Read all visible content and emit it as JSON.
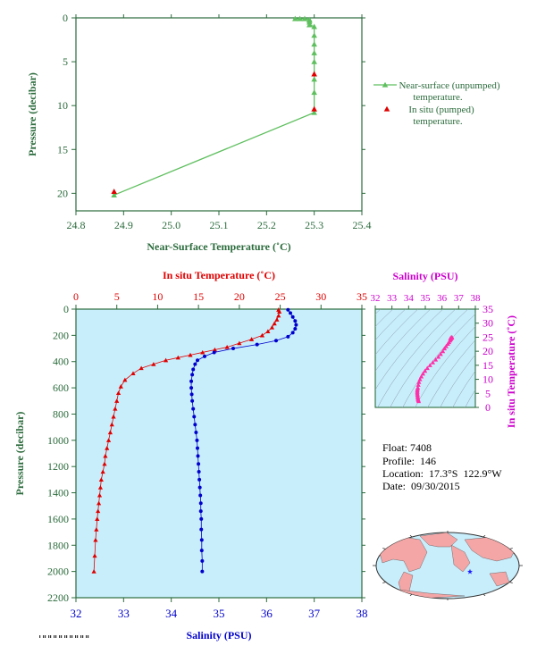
{
  "colors": {
    "axis": "#2b6b3c",
    "green_line": "#5fbf5f",
    "in_situ": "#e00000",
    "salinity": "#0000cc",
    "ts_points": "#ff2fa8",
    "salinity_label": "#cc00cc",
    "plot_bg": "#c8eefc",
    "land": "#f4a6a6",
    "ocean": "#c8eefc",
    "float_marker": "#1a1aff"
  },
  "float_info": {
    "float_label": "Float:",
    "float": "7408",
    "profile_label": "Profile:",
    "profile": "146",
    "location_label": "Location:",
    "location": "17.3°S  122.9°W",
    "date_label": "Date:",
    "date": "09/30/2015"
  },
  "chart_data": [
    {
      "type": "line",
      "id": "near_surface",
      "xlabel": "Near-Surface Temperature (˚C)",
      "ylabel": "Pressure (decibar)",
      "xlim": [
        24.8,
        25.4
      ],
      "ylim": [
        22,
        0
      ],
      "xticks": [
        24.8,
        24.9,
        25.0,
        25.1,
        25.2,
        25.3,
        25.4
      ],
      "yticks": [
        0,
        5,
        10,
        15,
        20
      ],
      "legend_position": "right",
      "series": [
        {
          "name": "Near-surface (unpumped) temperature.",
          "marker": "triangle",
          "x": [
            24.88,
            25.3,
            25.3,
            25.3,
            25.3,
            25.3,
            25.3,
            25.3,
            25.3,
            25.29,
            25.29,
            25.29,
            25.29,
            25.28,
            25.27,
            25.26
          ],
          "y": [
            20.2,
            10.8,
            8.5,
            7.0,
            5.0,
            4.0,
            3.0,
            2.0,
            1.0,
            0.8,
            0.5,
            0.3,
            0.2,
            0.1,
            0.1,
            0.1
          ]
        },
        {
          "name": "In situ (pumped) temperature.",
          "marker": "triangle",
          "x": [
            24.88,
            25.3,
            25.3
          ],
          "y": [
            19.8,
            10.4,
            6.4
          ]
        }
      ]
    },
    {
      "type": "line",
      "id": "profile",
      "xlabel": "Salinity (PSU)",
      "xlabel_top": "In situ Temperature (˚C)",
      "ylabel": "Pressure (decibar)",
      "xlim": [
        32,
        38
      ],
      "xlim_top": [
        0,
        35
      ],
      "ylim": [
        2200,
        0
      ],
      "xticks": [
        32,
        33,
        34,
        35,
        36,
        37,
        38
      ],
      "xticks_top": [
        0,
        5,
        10,
        15,
        20,
        25,
        30,
        35
      ],
      "yticks": [
        0,
        200,
        400,
        600,
        800,
        1000,
        1200,
        1400,
        1600,
        1800,
        2000,
        2200
      ],
      "series": [
        {
          "name": "In situ Temperature",
          "marker": "triangle",
          "x": [
            24.8,
            24.9,
            24.8,
            24.6,
            24.3,
            24.0,
            23.5,
            22.8,
            21.5,
            20.0,
            18.5,
            17.0,
            15.5,
            14.0,
            12.5,
            11.0,
            9.5,
            8.0,
            7.0,
            6.0,
            5.5,
            5.2,
            5.0,
            4.8,
            4.6,
            4.4,
            4.2,
            4.0,
            3.8,
            3.6,
            3.5,
            3.3,
            3.1,
            3.0,
            2.9,
            2.8,
            2.7,
            2.6,
            2.5,
            2.4,
            2.3,
            2.2
          ],
          "y": [
            5,
            20,
            50,
            80,
            110,
            140,
            170,
            200,
            230,
            260,
            290,
            310,
            330,
            350,
            370,
            390,
            420,
            450,
            490,
            540,
            590,
            640,
            700,
            760,
            820,
            880,
            940,
            1000,
            1060,
            1120,
            1180,
            1240,
            1300,
            1360,
            1420,
            1480,
            1540,
            1600,
            1680,
            1760,
            1880,
            2000
          ]
        },
        {
          "name": "Salinity",
          "marker": "circle",
          "x": [
            36.45,
            36.5,
            36.55,
            36.6,
            36.62,
            36.6,
            36.55,
            36.45,
            36.2,
            35.8,
            35.3,
            34.9,
            34.7,
            34.55,
            34.5,
            34.46,
            34.44,
            34.42,
            34.42,
            34.43,
            34.44,
            34.46,
            34.48,
            34.5,
            34.52,
            34.54,
            34.55,
            34.56,
            34.57,
            34.58,
            34.59,
            34.6,
            34.61,
            34.62,
            34.62,
            34.63,
            34.63,
            34.64,
            34.64,
            34.65,
            34.65
          ],
          "y": [
            5,
            30,
            60,
            90,
            120,
            150,
            180,
            210,
            240,
            270,
            300,
            330,
            360,
            390,
            420,
            460,
            500,
            550,
            600,
            650,
            700,
            760,
            820,
            880,
            940,
            1000,
            1060,
            1120,
            1180,
            1240,
            1300,
            1360,
            1420,
            1480,
            1540,
            1600,
            1680,
            1760,
            1840,
            1920,
            2000
          ]
        }
      ]
    },
    {
      "type": "scatter",
      "id": "ts_diagram",
      "xlabel_top": "Salinity (PSU)",
      "ylabel_right": "In situ Temperature (˚C)",
      "xlim": [
        32,
        38
      ],
      "ylim": [
        0,
        35
      ],
      "xticks": [
        32,
        33,
        34,
        35,
        36,
        37,
        38
      ],
      "yticks": [
        0,
        5,
        10,
        15,
        20,
        25,
        30,
        35
      ],
      "grid": true,
      "series": [
        {
          "name": "T-S",
          "x": [
            34.6,
            34.58,
            34.56,
            34.55,
            34.54,
            34.53,
            34.52,
            34.52,
            34.52,
            34.53,
            34.55,
            34.58,
            34.62,
            34.68,
            34.76,
            34.86,
            34.98,
            35.12,
            35.28,
            35.45,
            35.62,
            35.78,
            35.92,
            36.05,
            36.15,
            36.25,
            36.35,
            36.42,
            36.48,
            36.52,
            36.55,
            36.58,
            36.6,
            36.55,
            36.5
          ],
          "y": [
            2.2,
            2.6,
            3.0,
            3.5,
            4.0,
            4.5,
            5.0,
            5.5,
            6.0,
            6.5,
            7.0,
            8.0,
            9.0,
            10.0,
            11.0,
            12.0,
            13.0,
            14.0,
            15.0,
            16.0,
            17.0,
            18.0,
            19.0,
            20.0,
            21.0,
            21.8,
            22.6,
            23.2,
            23.8,
            24.2,
            24.6,
            24.8,
            25.0,
            24.9,
            24.6
          ]
        }
      ]
    }
  ]
}
